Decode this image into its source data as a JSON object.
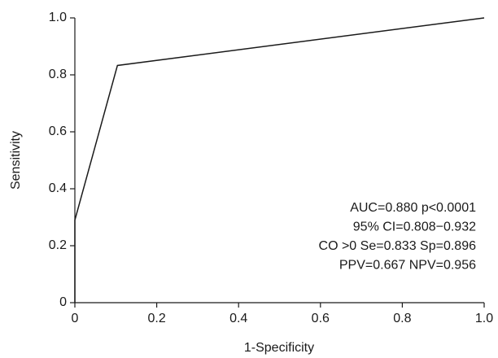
{
  "chart_data": {
    "type": "line",
    "x_label": "1-Specificity",
    "y_label": "Sensitivity",
    "x": [
      0,
      0,
      0.104,
      1
    ],
    "values": [
      0,
      0.29,
      0.833,
      1
    ],
    "color": "#1a1a1a",
    "xlim": [
      0,
      1
    ],
    "ylim": [
      0,
      1
    ],
    "xticks": [
      0,
      0.2,
      0.4,
      0.6,
      0.8,
      {
        "value": 1,
        "label": "1.0"
      }
    ],
    "yticks": [
      0,
      0.2,
      0.4,
      0.6,
      0.8,
      {
        "value": 1,
        "label": "1.0"
      }
    ],
    "grid": false,
    "annotations": [
      "AUC=0.880 p<0.0001",
      "95% CI=0.808−0.932",
      "CO >0 Se=0.833 Sp=0.896",
      "PPV=0.667 NPV=0.956"
    ]
  }
}
